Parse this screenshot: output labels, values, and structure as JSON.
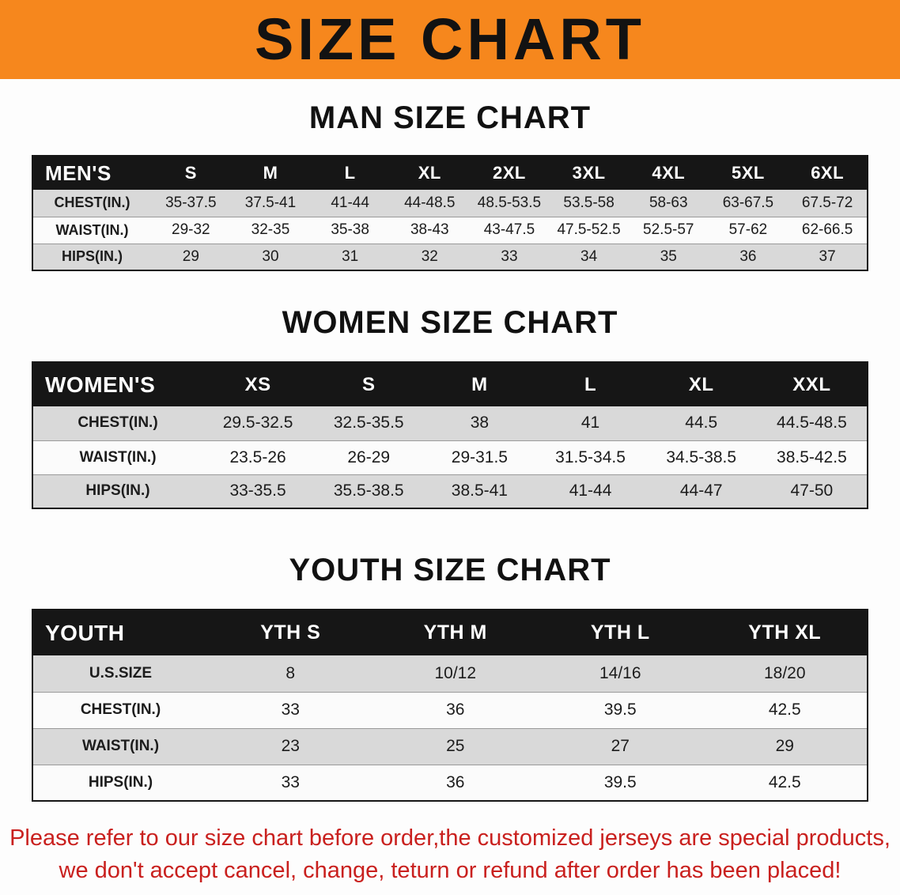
{
  "banner": {
    "title": "SIZE CHART"
  },
  "colors": {
    "banner_orange": "#f6871d",
    "table_header_black": "#161616",
    "row_stripe_gray": "#d9d9d9",
    "footer_red": "#c9201e"
  },
  "sections": {
    "men": {
      "heading": "MAN SIZE CHART",
      "table": {
        "header": [
          "MEN'S",
          "S",
          "M",
          "L",
          "XL",
          "2XL",
          "3XL",
          "4XL",
          "5XL",
          "6XL"
        ],
        "rows": [
          [
            "CHEST(IN.)",
            "35-37.5",
            "37.5-41",
            "41-44",
            "44-48.5",
            "48.5-53.5",
            "53.5-58",
            "58-63",
            "63-67.5",
            "67.5-72"
          ],
          [
            "WAIST(IN.)",
            "29-32",
            "32-35",
            "35-38",
            "38-43",
            "43-47.5",
            "47.5-52.5",
            "52.5-57",
            "57-62",
            "62-66.5"
          ],
          [
            "HIPS(IN.)",
            "29",
            "30",
            "31",
            "32",
            "33",
            "34",
            "35",
            "36",
            "37"
          ]
        ]
      }
    },
    "women": {
      "heading": "WOMEN SIZE CHART",
      "table": {
        "header": [
          "WOMEN'S",
          "XS",
          "S",
          "M",
          "L",
          "XL",
          "XXL"
        ],
        "rows": [
          [
            "CHEST(IN.)",
            "29.5-32.5",
            "32.5-35.5",
            "38",
            "41",
            "44.5",
            "44.5-48.5"
          ],
          [
            "WAIST(IN.)",
            "23.5-26",
            "26-29",
            "29-31.5",
            "31.5-34.5",
            "34.5-38.5",
            "38.5-42.5"
          ],
          [
            "HIPS(IN.)",
            "33-35.5",
            "35.5-38.5",
            "38.5-41",
            "41-44",
            "44-47",
            "47-50"
          ]
        ]
      }
    },
    "youth": {
      "heading": "YOUTH SIZE CHART",
      "table": {
        "header": [
          "YOUTH",
          "YTH S",
          "YTH M",
          "YTH L",
          "YTH XL"
        ],
        "rows": [
          [
            "U.S.SIZE",
            "8",
            "10/12",
            "14/16",
            "18/20"
          ],
          [
            "CHEST(IN.)",
            "33",
            "36",
            "39.5",
            "42.5"
          ],
          [
            "WAIST(IN.)",
            "23",
            "25",
            "27",
            "29"
          ],
          [
            "HIPS(IN.)",
            "33",
            "36",
            "39.5",
            "42.5"
          ]
        ]
      }
    }
  },
  "footer": {
    "line1": "Please refer to our size chart before order,the customized jerseys are special products,",
    "line2": "we don't accept cancel, change, teturn or refund after order has been placed!"
  }
}
